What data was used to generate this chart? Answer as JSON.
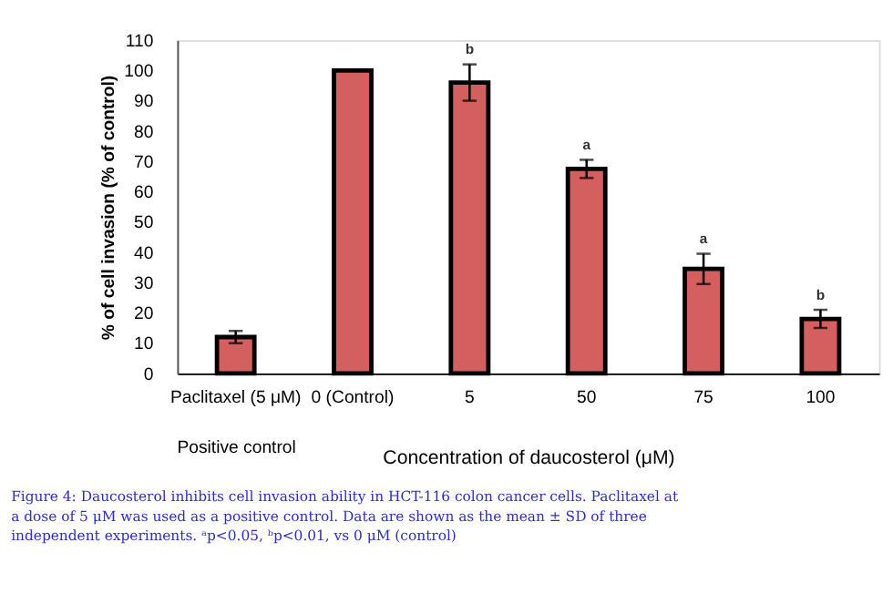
{
  "chart_data": {
    "type": "bar",
    "categories": [
      "Paclitaxel (5 μM)",
      "0 (Control)",
      "5",
      "50",
      "75",
      "100"
    ],
    "values": [
      12,
      100,
      96,
      67.5,
      34.5,
      18
    ],
    "errors": [
      2,
      null,
      6,
      3,
      5,
      3
    ],
    "color": "#d45f5f",
    "xlabel": "Concentration of daucosterol (μM)",
    "ylabel": "% of cell invasion (% of control)",
    "ylim": [
      0,
      110
    ],
    "yticks": [
      0,
      10,
      20,
      30,
      40,
      50,
      60,
      70,
      80,
      90,
      100,
      110
    ],
    "grid": false,
    "annotations": [
      {
        "text": "b",
        "x": "5",
        "y": 102
      },
      {
        "text": "a",
        "x": "50",
        "y": 70.5
      },
      {
        "text": "a",
        "x": "75",
        "y": 39.5
      },
      {
        "text": "b",
        "x": "100",
        "y": 21
      },
      "Positive control",
      "Figure 4: Daucosterol inhibits cell invasion ability in HCT-116 colon cancer cells. Paclitaxel at a dose of 5 μM was used as a positive control. Data are shown as the mean ± SD of three independent experiments. ᵃp<0.05, ᵇp<0.01, vs 0 μM (control)"
    ]
  }
}
